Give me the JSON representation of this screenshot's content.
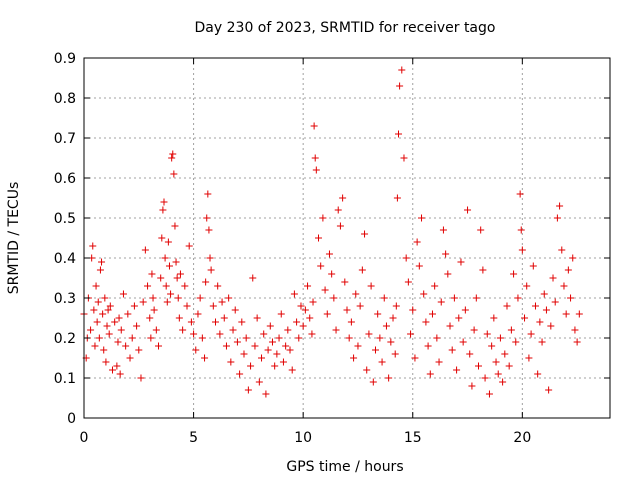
{
  "chart_data": {
    "type": "scatter",
    "title": "Day 230 of 2023, SRMTID for receiver tago",
    "xlabel": "GPS time / hours",
    "ylabel": "SRMTID / TECUs",
    "xlim": [
      0,
      24
    ],
    "ylim": [
      0,
      0.9
    ],
    "xticks": [
      0,
      5,
      10,
      15,
      20
    ],
    "yticks": [
      0,
      0.1,
      0.2,
      0.3,
      0.4,
      0.5,
      0.6,
      0.7,
      0.8,
      0.9
    ],
    "marker": "+",
    "color": "#e00000",
    "grid": true,
    "series": [
      {
        "name": "SRMTID",
        "x": [
          0.0,
          0.1,
          0.15,
          0.2,
          0.3,
          0.35,
          0.4,
          0.45,
          0.5,
          0.55,
          0.6,
          0.65,
          0.7,
          0.75,
          0.8,
          0.85,
          0.9,
          0.95,
          1.0,
          1.05,
          1.1,
          1.15,
          1.2,
          1.3,
          1.4,
          1.5,
          1.55,
          1.6,
          1.65,
          1.7,
          1.8,
          1.9,
          2.0,
          2.1,
          2.2,
          2.3,
          2.4,
          2.5,
          2.6,
          2.7,
          2.8,
          2.9,
          3.0,
          3.05,
          3.1,
          3.15,
          3.2,
          3.3,
          3.4,
          3.5,
          3.55,
          3.6,
          3.65,
          3.7,
          3.75,
          3.8,
          3.85,
          3.9,
          3.95,
          4.0,
          4.05,
          4.1,
          4.15,
          4.2,
          4.25,
          4.3,
          4.35,
          4.4,
          4.5,
          4.6,
          4.7,
          4.8,
          4.9,
          5.0,
          5.1,
          5.2,
          5.3,
          5.4,
          5.5,
          5.55,
          5.6,
          5.65,
          5.7,
          5.75,
          5.8,
          5.9,
          6.0,
          6.1,
          6.2,
          6.3,
          6.4,
          6.5,
          6.6,
          6.7,
          6.8,
          6.9,
          7.0,
          7.1,
          7.2,
          7.3,
          7.4,
          7.5,
          7.6,
          7.7,
          7.8,
          7.9,
          8.0,
          8.1,
          8.2,
          8.3,
          8.4,
          8.5,
          8.6,
          8.7,
          8.8,
          8.9,
          9.0,
          9.1,
          9.2,
          9.3,
          9.4,
          9.5,
          9.6,
          9.7,
          9.8,
          9.9,
          10.0,
          10.1,
          10.2,
          10.3,
          10.4,
          10.45,
          10.5,
          10.55,
          10.6,
          10.7,
          10.8,
          10.9,
          11.0,
          11.1,
          11.2,
          11.3,
          11.4,
          11.5,
          11.6,
          11.7,
          11.8,
          11.9,
          12.0,
          12.1,
          12.2,
          12.3,
          12.4,
          12.5,
          12.6,
          12.7,
          12.8,
          12.9,
          13.0,
          13.1,
          13.2,
          13.3,
          13.4,
          13.5,
          13.6,
          13.7,
          13.8,
          13.9,
          14.0,
          14.1,
          14.2,
          14.25,
          14.3,
          14.35,
          14.4,
          14.5,
          14.6,
          14.7,
          14.8,
          14.9,
          15.0,
          15.1,
          15.2,
          15.3,
          15.4,
          15.5,
          15.6,
          15.7,
          15.8,
          15.9,
          16.0,
          16.1,
          16.2,
          16.3,
          16.4,
          16.5,
          16.6,
          16.7,
          16.8,
          16.9,
          17.0,
          17.1,
          17.2,
          17.3,
          17.4,
          17.5,
          17.6,
          17.7,
          17.8,
          17.9,
          18.0,
          18.1,
          18.2,
          18.3,
          18.4,
          18.5,
          18.6,
          18.7,
          18.8,
          18.9,
          19.0,
          19.1,
          19.2,
          19.3,
          19.4,
          19.5,
          19.6,
          19.7,
          19.8,
          19.9,
          19.95,
          20.0,
          20.1,
          20.2,
          20.3,
          20.4,
          20.5,
          20.6,
          20.7,
          20.8,
          20.9,
          21.0,
          21.1,
          21.2,
          21.3,
          21.4,
          21.5,
          21.6,
          21.7,
          21.8,
          21.9,
          22.0,
          22.1,
          22.2,
          22.3,
          22.4,
          22.5,
          22.6
        ],
        "y": [
          0.26,
          0.15,
          0.2,
          0.3,
          0.22,
          0.4,
          0.43,
          0.27,
          0.18,
          0.33,
          0.24,
          0.29,
          0.2,
          0.37,
          0.39,
          0.26,
          0.17,
          0.3,
          0.14,
          0.23,
          0.27,
          0.21,
          0.28,
          0.12,
          0.24,
          0.13,
          0.19,
          0.25,
          0.11,
          0.22,
          0.31,
          0.18,
          0.26,
          0.15,
          0.2,
          0.28,
          0.23,
          0.17,
          0.1,
          0.29,
          0.42,
          0.33,
          0.25,
          0.2,
          0.36,
          0.3,
          0.27,
          0.22,
          0.18,
          0.35,
          0.45,
          0.52,
          0.54,
          0.4,
          0.33,
          0.29,
          0.44,
          0.38,
          0.31,
          0.65,
          0.66,
          0.61,
          0.48,
          0.39,
          0.35,
          0.3,
          0.25,
          0.36,
          0.22,
          0.33,
          0.28,
          0.43,
          0.24,
          0.21,
          0.17,
          0.26,
          0.3,
          0.2,
          0.15,
          0.34,
          0.5,
          0.56,
          0.47,
          0.4,
          0.37,
          0.28,
          0.24,
          0.33,
          0.21,
          0.29,
          0.25,
          0.18,
          0.3,
          0.14,
          0.22,
          0.27,
          0.19,
          0.11,
          0.24,
          0.16,
          0.2,
          0.07,
          0.13,
          0.35,
          0.18,
          0.25,
          0.09,
          0.15,
          0.21,
          0.06,
          0.17,
          0.23,
          0.19,
          0.13,
          0.16,
          0.2,
          0.26,
          0.14,
          0.18,
          0.22,
          0.17,
          0.12,
          0.31,
          0.24,
          0.2,
          0.28,
          0.23,
          0.27,
          0.33,
          0.25,
          0.21,
          0.29,
          0.73,
          0.65,
          0.62,
          0.45,
          0.38,
          0.5,
          0.32,
          0.26,
          0.41,
          0.36,
          0.3,
          0.22,
          0.52,
          0.48,
          0.55,
          0.34,
          0.27,
          0.2,
          0.24,
          0.15,
          0.31,
          0.18,
          0.28,
          0.37,
          0.46,
          0.12,
          0.21,
          0.33,
          0.09,
          0.17,
          0.26,
          0.2,
          0.14,
          0.3,
          0.23,
          0.1,
          0.19,
          0.25,
          0.16,
          0.28,
          0.55,
          0.71,
          0.83,
          0.87,
          0.65,
          0.4,
          0.34,
          0.21,
          0.27,
          0.15,
          0.44,
          0.38,
          0.5,
          0.31,
          0.24,
          0.18,
          0.11,
          0.26,
          0.33,
          0.2,
          0.14,
          0.29,
          0.47,
          0.41,
          0.36,
          0.23,
          0.17,
          0.3,
          0.12,
          0.25,
          0.39,
          0.19,
          0.27,
          0.52,
          0.16,
          0.08,
          0.22,
          0.3,
          0.13,
          0.47,
          0.37,
          0.1,
          0.21,
          0.06,
          0.18,
          0.25,
          0.14,
          0.11,
          0.2,
          0.09,
          0.16,
          0.28,
          0.13,
          0.22,
          0.36,
          0.19,
          0.3,
          0.56,
          0.47,
          0.42,
          0.25,
          0.33,
          0.15,
          0.21,
          0.38,
          0.28,
          0.11,
          0.24,
          0.19,
          0.31,
          0.27,
          0.07,
          0.23,
          0.35,
          0.29,
          0.5,
          0.53,
          0.42,
          0.33,
          0.26,
          0.37,
          0.3,
          0.4,
          0.22,
          0.19,
          0.26
        ]
      }
    ]
  }
}
